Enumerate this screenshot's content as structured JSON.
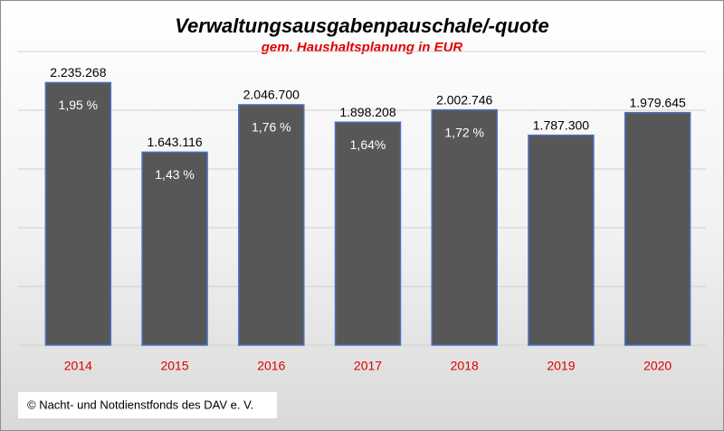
{
  "chart_data": {
    "type": "bar",
    "title": "Verwaltungsausgabenpauschale/-quote",
    "subtitle": "gem. Haushaltsplanung in EUR",
    "categories": [
      "2014",
      "2015",
      "2016",
      "2017",
      "2018",
      "2019",
      "2020"
    ],
    "values": [
      2235268,
      1643116,
      2046700,
      1898208,
      2002746,
      1787300,
      1979645
    ],
    "value_labels": [
      "2.235.268",
      "1.643.116",
      "2.046.700",
      "1.898.208",
      "2.002.746",
      "1.787.300",
      "1.979.645"
    ],
    "quote_labels": [
      "1,95 %",
      "1,43 %",
      "1,76 %",
      "1,64%",
      "1,72 %",
      null,
      null
    ],
    "color": "#575757",
    "ylim": [
      0,
      2500000
    ],
    "yticks": [
      0,
      500000,
      1000000,
      1500000,
      2000000,
      2500000
    ],
    "grid": true,
    "footnote": "© Nacht- und Notdienstfonds des DAV e. V."
  }
}
